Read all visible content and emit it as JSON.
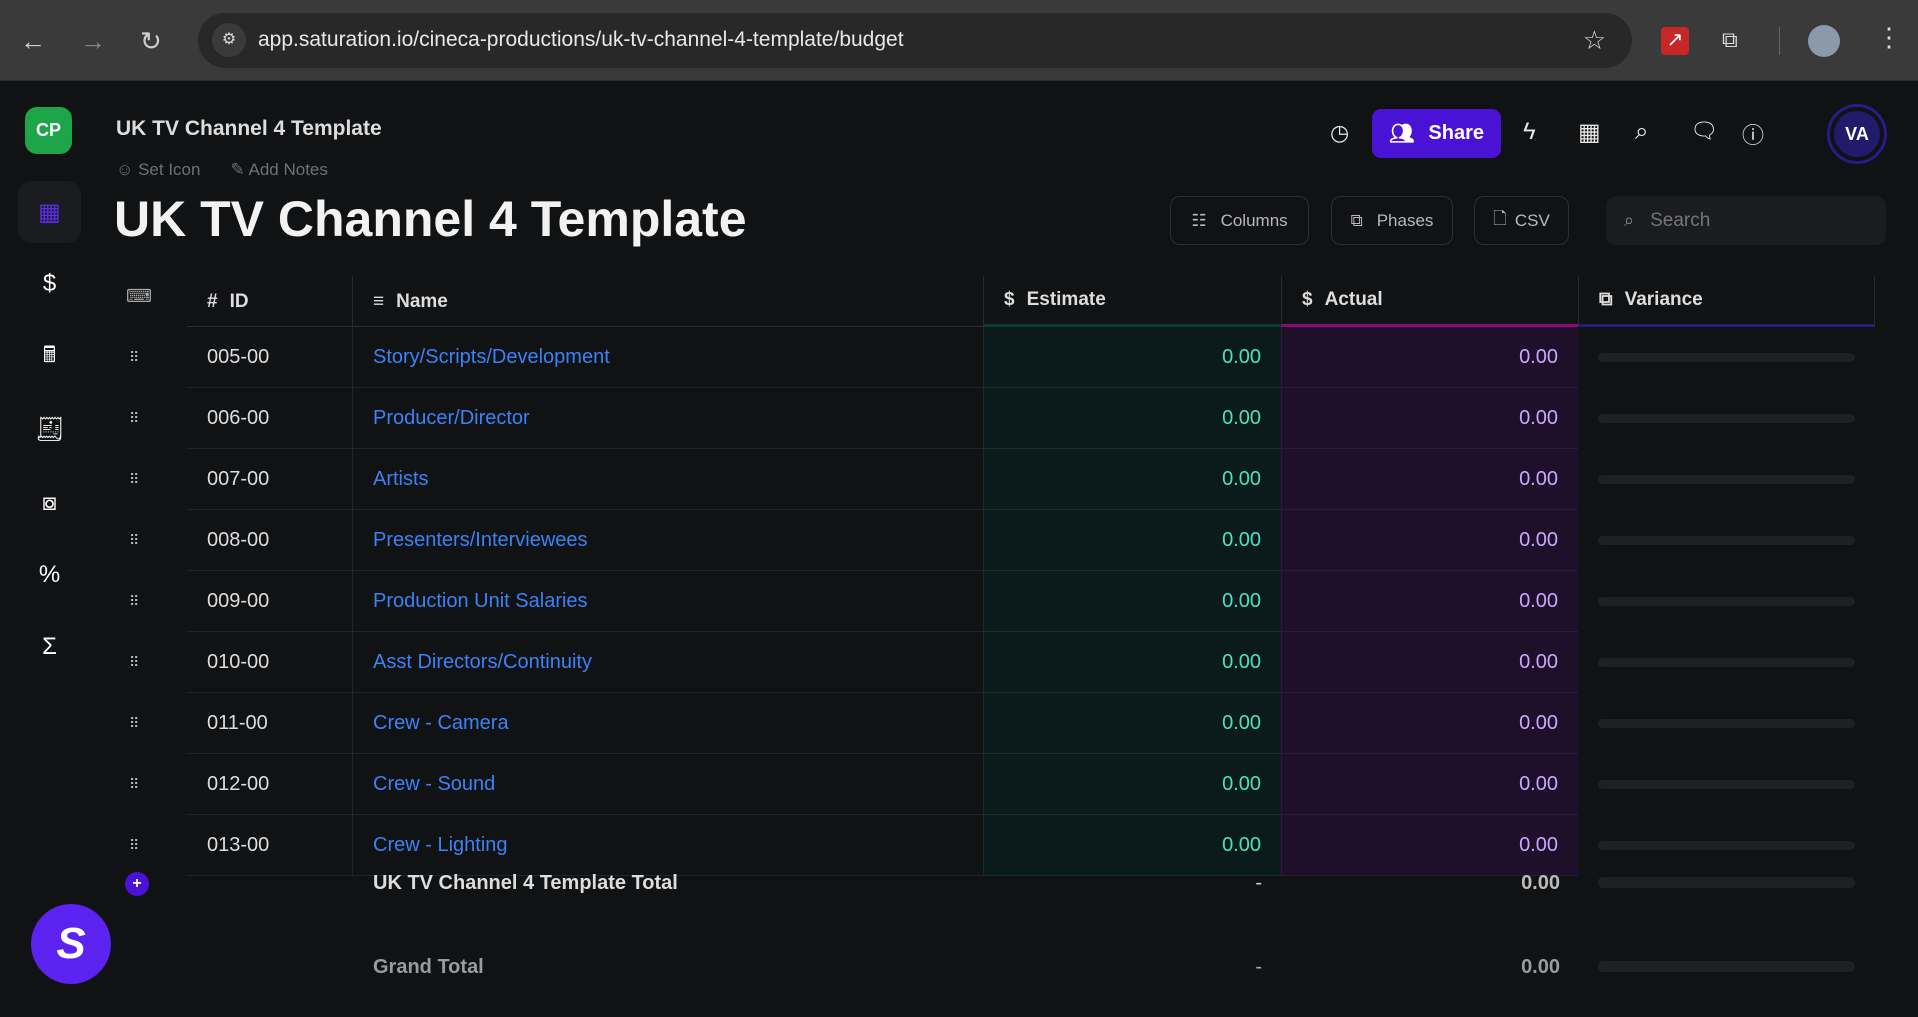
{
  "browser": {
    "url": "app.saturation.io/cineca-productions/uk-tv-channel-4-template/budget"
  },
  "workspace": {
    "initials": "CP"
  },
  "header": {
    "breadcrumb": "UK TV Channel 4 Template",
    "set_icon": "Set Icon",
    "add_notes": "Add Notes",
    "title": "UK TV Channel 4 Template",
    "share": "Share",
    "avatar": "VA"
  },
  "toolbar": {
    "columns": "Columns",
    "phases": "Phases",
    "csv": "CSV",
    "search_placeholder": "Search"
  },
  "table": {
    "columns": {
      "id": "ID",
      "name": "Name",
      "estimate": "Estimate",
      "actual": "Actual",
      "variance": "Variance"
    },
    "rows": [
      {
        "id": "005-00",
        "name": "Story/Scripts/Development",
        "estimate": "0.00",
        "actual": "0.00"
      },
      {
        "id": "006-00",
        "name": "Producer/Director",
        "estimate": "0.00",
        "actual": "0.00"
      },
      {
        "id": "007-00",
        "name": "Artists",
        "estimate": "0.00",
        "actual": "0.00"
      },
      {
        "id": "008-00",
        "name": "Presenters/Interviewees",
        "estimate": "0.00",
        "actual": "0.00"
      },
      {
        "id": "009-00",
        "name": "Production Unit Salaries",
        "estimate": "0.00",
        "actual": "0.00"
      },
      {
        "id": "010-00",
        "name": "Asst Directors/Continuity",
        "estimate": "0.00",
        "actual": "0.00"
      },
      {
        "id": "011-00",
        "name": "Crew - Camera",
        "estimate": "0.00",
        "actual": "0.00"
      },
      {
        "id": "012-00",
        "name": "Crew - Sound",
        "estimate": "0.00",
        "actual": "0.00"
      },
      {
        "id": "013-00",
        "name": "Crew - Lighting",
        "estimate": "0.00",
        "actual": "0.00"
      }
    ],
    "total": {
      "label": "UK TV Channel 4 Template Total",
      "estimate": "-",
      "actual": "0.00"
    },
    "grand_total": {
      "label": "Grand Total",
      "estimate": "-",
      "actual": "0.00"
    }
  },
  "colors": {
    "accent": "#4a12d4",
    "estimate_text": "#4fe0c0",
    "actual_text": "#c9a8ff",
    "link": "#3b82f6"
  }
}
